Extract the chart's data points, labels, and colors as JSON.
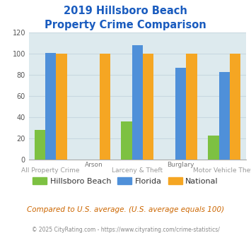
{
  "title_line1": "2019 Hillsboro Beach",
  "title_line2": "Property Crime Comparison",
  "title_color": "#1a5cbf",
  "categories": [
    "All Property Crime",
    "Arson",
    "Larceny & Theft",
    "Burglary",
    "Motor Vehicle Theft"
  ],
  "top_labels": [
    "",
    "Arson",
    "",
    "Burglary",
    ""
  ],
  "bottom_labels": [
    "All Property Crime",
    "",
    "Larceny & Theft",
    "",
    "Motor Vehicle Theft"
  ],
  "series": {
    "Hillsboro Beach": [
      28,
      0,
      36,
      0,
      23
    ],
    "Florida": [
      101,
      0,
      108,
      87,
      83
    ],
    "National": [
      100,
      100,
      100,
      100,
      100
    ]
  },
  "colors": {
    "Hillsboro Beach": "#7dc142",
    "Florida": "#4f90d9",
    "National": "#f5a623"
  },
  "ylim": [
    0,
    120
  ],
  "yticks": [
    0,
    20,
    40,
    60,
    80,
    100,
    120
  ],
  "grid_color": "#c8d8e0",
  "bg_color": "#ddeaee",
  "subtitle": "Compared to U.S. average. (U.S. average equals 100)",
  "subtitle_color": "#cc6600",
  "footer": "© 2025 CityRating.com - https://www.cityrating.com/crime-statistics/",
  "footer_color": "#888888",
  "bar_width": 0.25
}
